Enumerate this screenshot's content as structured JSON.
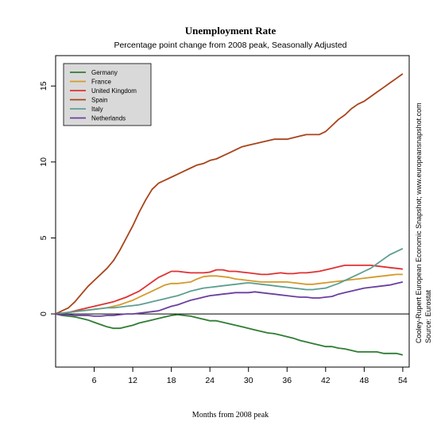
{
  "chart_data": {
    "type": "line",
    "title": "Unemployment Rate",
    "subtitle": "Percentage point change from 2008 peak, Seasonally Adjusted",
    "xlabel": "Months from 2008 peak",
    "ylabel": "",
    "xlim": [
      0,
      55
    ],
    "ylim": [
      -3.5,
      17
    ],
    "xticks": [
      6,
      12,
      18,
      24,
      30,
      36,
      42,
      48,
      54
    ],
    "yticks": [
      0,
      5,
      10,
      15
    ],
    "legend_position": "top-left",
    "zero_line": true,
    "series": [
      {
        "name": "Germany",
        "color": "#2e7d32",
        "x": [
          0,
          1,
          2,
          3,
          4,
          5,
          6,
          7,
          8,
          9,
          10,
          11,
          12,
          13,
          14,
          15,
          16,
          17,
          18,
          19,
          20,
          21,
          22,
          23,
          24,
          25,
          26,
          27,
          28,
          29,
          30,
          31,
          32,
          33,
          34,
          35,
          36,
          37,
          38,
          39,
          40,
          41,
          42,
          43,
          44,
          45,
          46,
          47,
          48,
          49,
          50,
          51,
          52,
          53,
          54
        ],
        "values": [
          0,
          -0.1,
          -0.15,
          -0.2,
          -0.3,
          -0.4,
          -0.55,
          -0.7,
          -0.85,
          -0.95,
          -0.95,
          -0.85,
          -0.75,
          -0.6,
          -0.5,
          -0.4,
          -0.3,
          -0.2,
          -0.1,
          -0.05,
          -0.1,
          -0.15,
          -0.25,
          -0.35,
          -0.45,
          -0.45,
          -0.55,
          -0.65,
          -0.75,
          -0.85,
          -0.95,
          -1.05,
          -1.15,
          -1.25,
          -1.3,
          -1.4,
          -1.5,
          -1.6,
          -1.75,
          -1.85,
          -1.95,
          -2.05,
          -2.15,
          -2.15,
          -2.25,
          -2.3,
          -2.4,
          -2.5,
          -2.5,
          -2.5,
          -2.5,
          -2.6,
          -2.6,
          -2.6,
          -2.7
        ]
      },
      {
        "name": "France",
        "color": "#d49a2a",
        "x": [
          0,
          1,
          2,
          3,
          4,
          5,
          6,
          7,
          8,
          9,
          10,
          11,
          12,
          13,
          14,
          15,
          16,
          17,
          18,
          19,
          20,
          21,
          22,
          23,
          24,
          25,
          26,
          27,
          28,
          29,
          30,
          31,
          32,
          33,
          34,
          35,
          36,
          37,
          38,
          39,
          40,
          41,
          42,
          43,
          44,
          45,
          46,
          47,
          48,
          49,
          50,
          51,
          52,
          53,
          54
        ],
        "values": [
          0,
          0.05,
          0.1,
          0.15,
          0.2,
          0.25,
          0.3,
          0.35,
          0.4,
          0.5,
          0.6,
          0.75,
          0.9,
          1.1,
          1.3,
          1.5,
          1.7,
          1.9,
          2.0,
          2.0,
          2.05,
          2.1,
          2.3,
          2.45,
          2.5,
          2.5,
          2.45,
          2.4,
          2.3,
          2.25,
          2.2,
          2.15,
          2.1,
          2.1,
          2.1,
          2.1,
          2.1,
          2.05,
          2.0,
          1.95,
          1.95,
          2.0,
          2.05,
          2.1,
          2.15,
          2.2,
          2.25,
          2.3,
          2.35,
          2.4,
          2.45,
          2.5,
          2.55,
          2.6,
          2.6
        ]
      },
      {
        "name": "United Kingdom",
        "color": "#e03131",
        "x": [
          0,
          1,
          2,
          3,
          4,
          5,
          6,
          7,
          8,
          9,
          10,
          11,
          12,
          13,
          14,
          15,
          16,
          17,
          18,
          19,
          20,
          21,
          22,
          23,
          24,
          25,
          26,
          27,
          28,
          29,
          30,
          31,
          32,
          33,
          34,
          35,
          36,
          37,
          38,
          39,
          40,
          41,
          42,
          43,
          44,
          45,
          46,
          47,
          48,
          49,
          50,
          51,
          52,
          53,
          54
        ],
        "values": [
          0,
          0.05,
          0.1,
          0.2,
          0.3,
          0.4,
          0.5,
          0.6,
          0.7,
          0.8,
          0.95,
          1.1,
          1.3,
          1.5,
          1.8,
          2.1,
          2.4,
          2.6,
          2.8,
          2.8,
          2.75,
          2.7,
          2.7,
          2.7,
          2.75,
          2.9,
          2.9,
          2.8,
          2.8,
          2.75,
          2.7,
          2.65,
          2.6,
          2.6,
          2.65,
          2.7,
          2.65,
          2.65,
          2.7,
          2.7,
          2.75,
          2.8,
          2.9,
          3.0,
          3.1,
          3.2,
          3.2,
          3.2,
          3.2,
          3.2,
          3.15,
          3.1,
          3.05,
          3.0,
          2.95
        ]
      },
      {
        "name": "Spain",
        "color": "#a8431a",
        "x": [
          0,
          1,
          2,
          3,
          4,
          5,
          6,
          7,
          8,
          9,
          10,
          11,
          12,
          13,
          14,
          15,
          16,
          17,
          18,
          19,
          20,
          21,
          22,
          23,
          24,
          25,
          26,
          27,
          28,
          29,
          30,
          31,
          32,
          33,
          34,
          35,
          36,
          37,
          38,
          39,
          40,
          41,
          42,
          43,
          44,
          45,
          46,
          47,
          48,
          49,
          50,
          51,
          52,
          53,
          54
        ],
        "values": [
          0,
          0.2,
          0.4,
          0.8,
          1.3,
          1.8,
          2.2,
          2.6,
          3.0,
          3.5,
          4.2,
          5.0,
          5.8,
          6.7,
          7.5,
          8.2,
          8.6,
          8.8,
          9.0,
          9.2,
          9.4,
          9.6,
          9.8,
          9.9,
          10.1,
          10.2,
          10.4,
          10.6,
          10.8,
          11.0,
          11.1,
          11.2,
          11.3,
          11.4,
          11.5,
          11.5,
          11.5,
          11.6,
          11.7,
          11.8,
          11.8,
          11.8,
          12.0,
          12.4,
          12.8,
          13.1,
          13.5,
          13.8,
          14.0,
          14.3,
          14.6,
          14.9,
          15.2,
          15.5,
          15.8
        ]
      },
      {
        "name": "Italy",
        "color": "#5e9e92",
        "x": [
          0,
          1,
          2,
          3,
          4,
          5,
          6,
          7,
          8,
          9,
          10,
          11,
          12,
          13,
          14,
          15,
          16,
          17,
          18,
          19,
          20,
          21,
          22,
          23,
          24,
          25,
          26,
          27,
          28,
          29,
          30,
          31,
          32,
          33,
          34,
          35,
          36,
          37,
          38,
          39,
          40,
          41,
          42,
          43,
          44,
          45,
          46,
          47,
          48,
          49,
          50,
          51,
          52,
          53,
          54
        ],
        "values": [
          0,
          0.05,
          0.1,
          0.15,
          0.2,
          0.25,
          0.3,
          0.35,
          0.4,
          0.4,
          0.45,
          0.5,
          0.55,
          0.6,
          0.7,
          0.8,
          0.9,
          1.0,
          1.1,
          1.2,
          1.35,
          1.5,
          1.6,
          1.7,
          1.75,
          1.8,
          1.85,
          1.9,
          1.95,
          2.0,
          2.05,
          2.0,
          1.95,
          1.9,
          1.85,
          1.8,
          1.75,
          1.7,
          1.65,
          1.6,
          1.6,
          1.65,
          1.7,
          1.85,
          2.0,
          2.2,
          2.4,
          2.6,
          2.8,
          3.0,
          3.3,
          3.6,
          3.9,
          4.1,
          4.3
        ]
      },
      {
        "name": "Netherlands",
        "color": "#6a3fa0",
        "x": [
          0,
          1,
          2,
          3,
          4,
          5,
          6,
          7,
          8,
          9,
          10,
          11,
          12,
          13,
          14,
          15,
          16,
          17,
          18,
          19,
          20,
          21,
          22,
          23,
          24,
          25,
          26,
          27,
          28,
          29,
          30,
          31,
          32,
          33,
          34,
          35,
          36,
          37,
          38,
          39,
          40,
          41,
          42,
          43,
          44,
          45,
          46,
          47,
          48,
          49,
          50,
          51,
          52,
          53,
          54
        ],
        "values": [
          0,
          -0.05,
          -0.05,
          -0.1,
          -0.1,
          -0.1,
          -0.15,
          -0.15,
          -0.1,
          -0.1,
          -0.05,
          0,
          0,
          0.05,
          0.1,
          0.15,
          0.2,
          0.35,
          0.5,
          0.6,
          0.75,
          0.9,
          1.0,
          1.1,
          1.2,
          1.25,
          1.3,
          1.35,
          1.4,
          1.4,
          1.4,
          1.45,
          1.4,
          1.35,
          1.3,
          1.25,
          1.2,
          1.15,
          1.1,
          1.1,
          1.05,
          1.05,
          1.1,
          1.15,
          1.3,
          1.4,
          1.5,
          1.6,
          1.7,
          1.75,
          1.8,
          1.85,
          1.9,
          2.0,
          2.1
        ]
      }
    ],
    "side_note": "Cooley-Rupert European Economic Snapshot; www.europeansnapshot.com",
    "source_note": "Source: Eurostat"
  }
}
